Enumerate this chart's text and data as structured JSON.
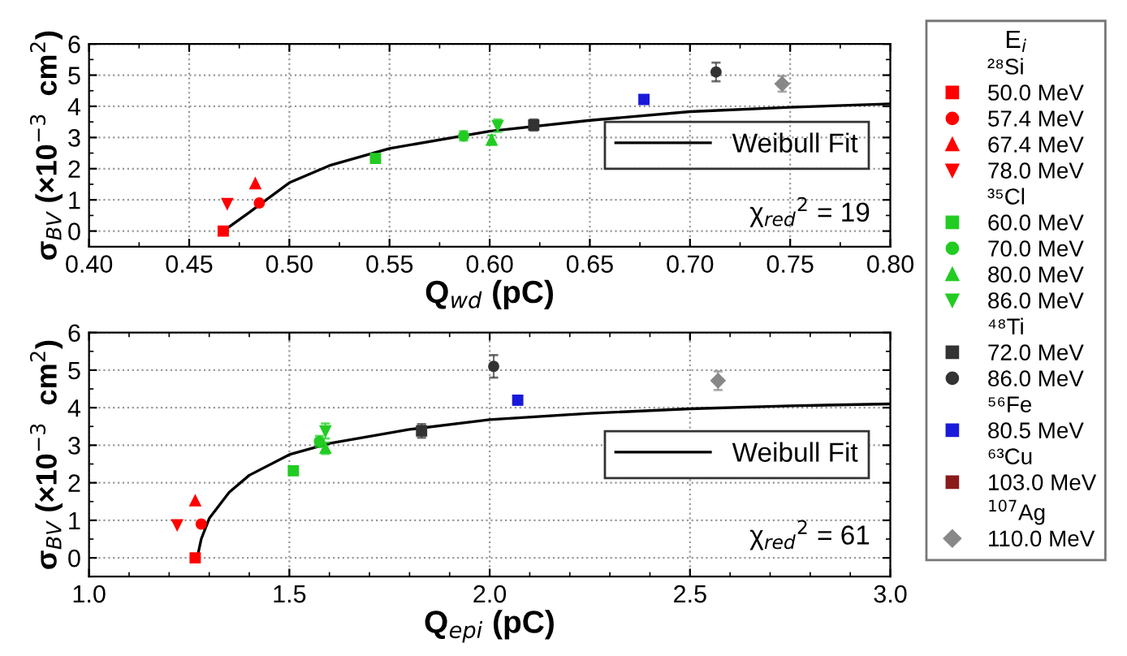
{
  "chart_data": [
    {
      "type": "scatter",
      "xlabel": "Q$_{wd}$ (pC)",
      "ylabel": "σ$_{BV}$ (×10$^{−3}$  cm$^{2}$)",
      "legend_title": "E$_{i}$",
      "xlim": [
        0.4,
        0.8
      ],
      "xticks": [
        {
          "value": 0.4,
          "label": "0.40"
        },
        {
          "value": 0.45,
          "label": "0.45"
        },
        {
          "value": 0.5,
          "label": "0.50"
        },
        {
          "value": 0.55,
          "label": "0.55"
        },
        {
          "value": 0.6,
          "label": "0.60"
        },
        {
          "value": 0.65,
          "label": "0.65"
        },
        {
          "value": 0.7,
          "label": "0.70"
        },
        {
          "value": 0.75,
          "label": "0.75"
        },
        {
          "value": 0.8,
          "label": "0.80"
        }
      ],
      "ylim": [
        -0.5,
        6
      ],
      "yticks": [
        0,
        1,
        2,
        3,
        4,
        5,
        6
      ],
      "grid": true,
      "legend": "center right",
      "annotations": [
        "χ$_{red}$$^{2}$ = 19"
      ],
      "series": [
        {
          "name": "²⁸Si",
          "x": [
            null
          ],
          "values": [
            null
          ],
          "marker": "none"
        },
        {
          "name": "50.0 MeV",
          "color": "#ff0000",
          "marker": "square",
          "x": [
            0.467
          ],
          "values": [
            0.0
          ]
        },
        {
          "name": "57.4 MeV",
          "color": "#ff0000",
          "marker": "circle",
          "x": [
            0.485
          ],
          "values": [
            0.9
          ]
        },
        {
          "name": "67.4 MeV",
          "color": "#ff0000",
          "marker": "triangle",
          "x": [
            0.483
          ],
          "values": [
            1.52
          ]
        },
        {
          "name": "78.0 MeV",
          "color": "#ff0000",
          "marker": "triangle_down",
          "x": [
            0.469
          ],
          "values": [
            0.88
          ]
        },
        {
          "name": "³⁵Cl",
          "x": [
            null
          ],
          "values": [
            null
          ],
          "marker": "none"
        },
        {
          "name": "60.0 MeV",
          "color": "#22cc22",
          "marker": "square",
          "x": [
            0.543
          ],
          "values": [
            2.33
          ],
          "errors": [
            0.08
          ]
        },
        {
          "name": "70.0 MeV",
          "color": "#22cc22",
          "marker": "circle",
          "x": [
            0.587
          ],
          "values": [
            3.05
          ],
          "errors": [
            0.15
          ]
        },
        {
          "name": "80.0 MeV",
          "color": "#22cc22",
          "marker": "triangle",
          "x": [
            0.601
          ],
          "values": [
            2.92
          ],
          "errors": [
            0.15
          ]
        },
        {
          "name": "86.0 MeV",
          "color": "#22cc22",
          "marker": "triangle_down",
          "x": [
            0.604
          ],
          "values": [
            3.38
          ],
          "errors": [
            0.2
          ]
        },
        {
          "name": "⁴⁸Ti",
          "x": [
            null
          ],
          "values": [
            null
          ],
          "marker": "none"
        },
        {
          "name": "72.0 MeV",
          "color": "#333333",
          "marker": "square",
          "x": [
            0.622
          ],
          "values": [
            3.4
          ],
          "errors": [
            0.18
          ]
        },
        {
          "name": "86.0 MeV",
          "color": "#333333",
          "marker": "circle",
          "x": [
            0.713
          ],
          "values": [
            5.1
          ],
          "errors": [
            0.3
          ]
        },
        {
          "name": "⁵⁶Fe",
          "x": [
            null
          ],
          "values": [
            null
          ],
          "marker": "none"
        },
        {
          "name": "80.5 MeV",
          "color": "#1a1adb",
          "marker": "square",
          "x": [
            0.677
          ],
          "values": [
            4.22
          ],
          "errors": [
            0.12
          ]
        },
        {
          "name": "⁶³Cu",
          "x": [
            null
          ],
          "values": [
            null
          ],
          "marker": "none"
        },
        {
          "name": "103.0 MeV",
          "color": "#8b1a1a",
          "marker": "square",
          "x": [
            null
          ],
          "values": [
            null
          ]
        },
        {
          "name": "$^{107}$Ag",
          "x": [
            null
          ],
          "values": [
            null
          ],
          "marker": "none"
        },
        {
          "name": "110.0 MeV",
          "color": "#888888",
          "marker": "diamond",
          "x": [
            0.746
          ],
          "values": [
            4.72
          ],
          "errors": [
            0.25
          ]
        },
        {
          "name": "Weibull Fit",
          "type": "line",
          "color": "#000000",
          "marker": "none",
          "x": [
            0.467,
            0.48,
            0.5,
            0.52,
            0.55,
            0.6,
            0.65,
            0.7,
            0.75,
            0.8
          ],
          "values": [
            0.0,
            0.6,
            1.55,
            2.1,
            2.65,
            3.2,
            3.55,
            3.83,
            3.97,
            4.08
          ]
        }
      ]
    },
    {
      "type": "scatter",
      "xlabel": "Q$_{epi}$ (pC)",
      "ylabel": "σ$_{BV}$ (×10$^{−3}$  cm$^{2}$)",
      "xlim": [
        1.0,
        3.0
      ],
      "xticks": [
        {
          "value": 1.0,
          "label": "1.0"
        },
        {
          "value": 1.5,
          "label": "1.5"
        },
        {
          "value": 2.0,
          "label": "2.0"
        },
        {
          "value": 2.5,
          "label": "2.5"
        },
        {
          "value": 3.0,
          "label": "3.0"
        }
      ],
      "ylim": [
        -0.5,
        6
      ],
      "yticks": [
        0,
        1,
        2,
        3,
        4,
        5,
        6
      ],
      "grid": true,
      "legend": "center right",
      "annotations": [
        "χ$_{red}$$^{2}$ = 61"
      ],
      "series": [
        {
          "color": "#ff0000",
          "marker": "square",
          "x": [
            1.265
          ],
          "values": [
            0.0
          ]
        },
        {
          "color": "#ff0000",
          "marker": "circle",
          "x": [
            1.28
          ],
          "values": [
            0.9
          ]
        },
        {
          "color": "#ff0000",
          "marker": "triangle",
          "x": [
            1.265
          ],
          "values": [
            1.52
          ]
        },
        {
          "color": "#ff0000",
          "marker": "triangle_down",
          "x": [
            1.22
          ],
          "values": [
            0.88
          ]
        },
        {
          "color": "#22cc22",
          "marker": "square",
          "x": [
            1.51
          ],
          "values": [
            2.32
          ],
          "errors": [
            0.08
          ]
        },
        {
          "color": "#22cc22",
          "marker": "circle",
          "x": [
            1.575
          ],
          "values": [
            3.1
          ],
          "errors": [
            0.15
          ]
        },
        {
          "color": "#22cc22",
          "marker": "triangle",
          "x": [
            1.59
          ],
          "values": [
            2.92
          ],
          "errors": [
            0.15
          ]
        },
        {
          "color": "#22cc22",
          "marker": "triangle_down",
          "x": [
            1.59
          ],
          "values": [
            3.38
          ],
          "errors": [
            0.2
          ]
        },
        {
          "color": "#333333",
          "marker": "square",
          "x": [
            1.83
          ],
          "values": [
            3.38
          ],
          "errors": [
            0.18
          ]
        },
        {
          "color": "#333333",
          "marker": "circle",
          "x": [
            2.01
          ],
          "values": [
            5.1
          ],
          "errors": [
            0.3
          ]
        },
        {
          "color": "#1a1adb",
          "marker": "square",
          "x": [
            2.07
          ],
          "values": [
            4.2
          ],
          "errors": [
            0.12
          ]
        },
        {
          "color": "#888888",
          "marker": "diamond",
          "x": [
            2.57
          ],
          "values": [
            4.72
          ],
          "errors": [
            0.25
          ]
        },
        {
          "name": "Weibull Fit",
          "type": "line",
          "color": "#000000",
          "marker": "none",
          "x": [
            1.27,
            1.28,
            1.3,
            1.35,
            1.4,
            1.5,
            1.6,
            1.8,
            2.0,
            2.25,
            2.5,
            2.75,
            3.0
          ],
          "values": [
            0.0,
            0.5,
            1.05,
            1.75,
            2.2,
            2.75,
            3.05,
            3.42,
            3.68,
            3.85,
            3.97,
            4.05,
            4.1
          ]
        }
      ]
    }
  ]
}
